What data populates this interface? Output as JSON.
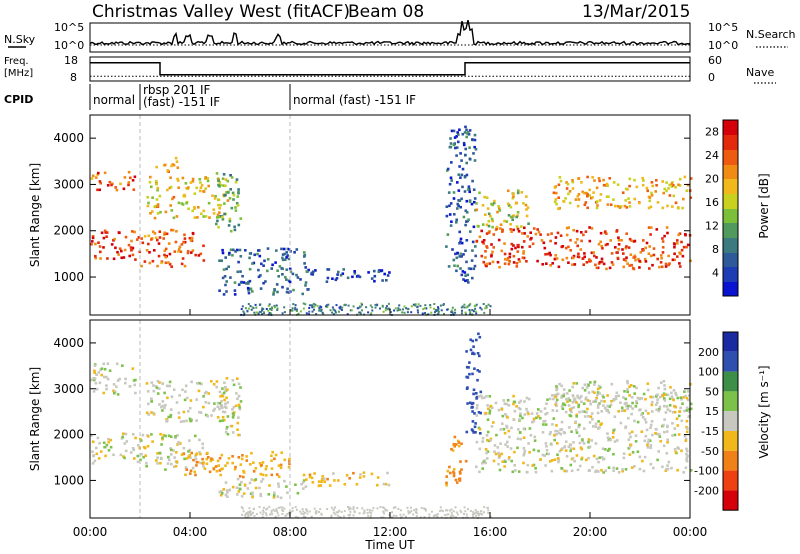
{
  "header": {
    "station": "Christmas Valley West (fitACF)",
    "beam": "Beam 08",
    "date": "13/Mar/2015"
  },
  "labels": {
    "nsky": "N.Sky",
    "nsearch": "N.Search",
    "freq_line1": "Freq.",
    "freq_line2": "[MHz]",
    "nave": "Nave",
    "cpid": "CPID",
    "slant_range": "Slant Range [km]",
    "time_ut": "Time UT",
    "power": "Power [dB]",
    "velocity": "Velocity [m s⁻¹]"
  },
  "cpid_segments": [
    {
      "start": 0.0,
      "lines": [
        "normal"
      ]
    },
    {
      "start": 2.0,
      "lines": [
        "rbsp 201 IF",
        "(fast) -151 IF"
      ]
    },
    {
      "start": 8.0,
      "lines": [
        "normal (fast) -151 IF"
      ]
    }
  ],
  "chart_data": [
    {
      "type": "line",
      "name": "noise",
      "left_axis": {
        "title": "N.Sky",
        "ticks": [
          "10^5",
          "10^0"
        ]
      },
      "right_axis": {
        "title": "N.Search",
        "ticks": [
          "10^5",
          "10^0"
        ]
      },
      "spikes_hours": [
        3.4,
        3.9,
        4.8,
        5.8,
        7.5,
        14.8,
        15.0,
        15.2
      ]
    },
    {
      "type": "line",
      "name": "frequency-nave",
      "left_axis": {
        "title": "Freq. [MHz]",
        "ticks": [
          18,
          8
        ],
        "range": [
          8,
          18
        ]
      },
      "right_axis": {
        "title": "Nave",
        "ticks": [
          60,
          0
        ],
        "range": [
          0,
          60
        ]
      },
      "freq_steps": [
        [
          0,
          15.6
        ],
        [
          2.8,
          15.6
        ],
        [
          2.8,
          10.6
        ],
        [
          15.0,
          10.6
        ],
        [
          15.0,
          15.6
        ],
        [
          24,
          15.6
        ]
      ],
      "nave_level": 12
    },
    {
      "type": "heatmap",
      "name": "power",
      "xlim": [
        0,
        24
      ],
      "ylim": [
        180,
        4500
      ],
      "ylabel": "Slant Range [km]",
      "yticks": [
        1000,
        2000,
        3000,
        4000
      ],
      "colorbar": {
        "title": "Power [dB]",
        "ticks": [
          4,
          8,
          12,
          16,
          20,
          24,
          28
        ],
        "range": [
          0,
          30
        ]
      },
      "echo_regions": [
        {
          "t0": 0.0,
          "t1": 2.0,
          "r0": 1400,
          "r1": 2050,
          "level": 26
        },
        {
          "t0": 0.0,
          "t1": 1.8,
          "r0": 2900,
          "r1": 3300,
          "level": 24
        },
        {
          "t0": 2.0,
          "t1": 4.5,
          "r0": 1250,
          "r1": 2050,
          "level": 24
        },
        {
          "t0": 2.2,
          "t1": 5.5,
          "r0": 2300,
          "r1": 3200,
          "level": 18
        },
        {
          "t0": 2.5,
          "t1": 3.6,
          "r0": 3300,
          "r1": 3600,
          "level": 22
        },
        {
          "t0": 5.0,
          "t1": 6.0,
          "r0": 2000,
          "r1": 3300,
          "level": 12
        },
        {
          "t0": 5.1,
          "t1": 8.7,
          "r0": 650,
          "r1": 1650,
          "level": 6
        },
        {
          "t0": 8.5,
          "t1": 12.0,
          "r0": 900,
          "r1": 1200,
          "level": 5
        },
        {
          "t0": 14.2,
          "t1": 15.4,
          "r0": 900,
          "r1": 4300,
          "level": 6
        },
        {
          "t0": 15.4,
          "t1": 24.0,
          "r0": 1200,
          "r1": 2100,
          "level": 25
        },
        {
          "t0": 15.4,
          "t1": 17.5,
          "r0": 2100,
          "r1": 2900,
          "level": 16
        },
        {
          "t0": 18.5,
          "t1": 24.0,
          "r0": 2500,
          "r1": 3200,
          "level": 20
        }
      ]
    },
    {
      "type": "heatmap",
      "name": "velocity",
      "xlim": [
        0,
        24
      ],
      "ylim": [
        180,
        4500
      ],
      "ylabel": "Slant Range [km]",
      "yticks": [
        1000,
        2000,
        3000,
        4000
      ],
      "xticks": [
        "00:00",
        "04:00",
        "08:00",
        "12:00",
        "16:00",
        "20:00",
        "00:00"
      ],
      "xlabel": "Time UT",
      "colorbar": {
        "title": "Velocity [m s⁻¹]",
        "ticks": [
          200,
          100,
          50,
          15,
          -15,
          -50,
          -100,
          -200
        ],
        "range": [
          -250,
          250
        ]
      },
      "echo_regions": [
        {
          "t0": 0.0,
          "t1": 2.0,
          "r0": 1400,
          "r1": 2050,
          "level": 0
        },
        {
          "t0": 0.0,
          "t1": 1.8,
          "r0": 2900,
          "r1": 3600,
          "level": 0
        },
        {
          "t0": 2.0,
          "t1": 4.5,
          "r0": 1250,
          "r1": 2050,
          "level": 0
        },
        {
          "t0": 2.2,
          "t1": 5.5,
          "r0": 2300,
          "r1": 3200,
          "level": 0
        },
        {
          "t0": 5.0,
          "t1": 6.0,
          "r0": 2000,
          "r1": 3300,
          "level": 0
        },
        {
          "t0": 3.5,
          "t1": 8.0,
          "r0": 1100,
          "r1": 1650,
          "level": -40
        },
        {
          "t0": 5.1,
          "t1": 8.7,
          "r0": 650,
          "r1": 1100,
          "level": 0
        },
        {
          "t0": 8.5,
          "t1": 12.0,
          "r0": 900,
          "r1": 1200,
          "level": -30
        },
        {
          "t0": 14.2,
          "t1": 15.0,
          "r0": 900,
          "r1": 2000,
          "level": -60
        },
        {
          "t0": 15.0,
          "t1": 15.6,
          "r0": 2000,
          "r1": 4300,
          "level": 150
        },
        {
          "t0": 15.4,
          "t1": 24.0,
          "r0": 1200,
          "r1": 2900,
          "level": 0
        },
        {
          "t0": 18.5,
          "t1": 24.0,
          "r0": 2500,
          "r1": 3200,
          "level": 0
        }
      ]
    }
  ]
}
